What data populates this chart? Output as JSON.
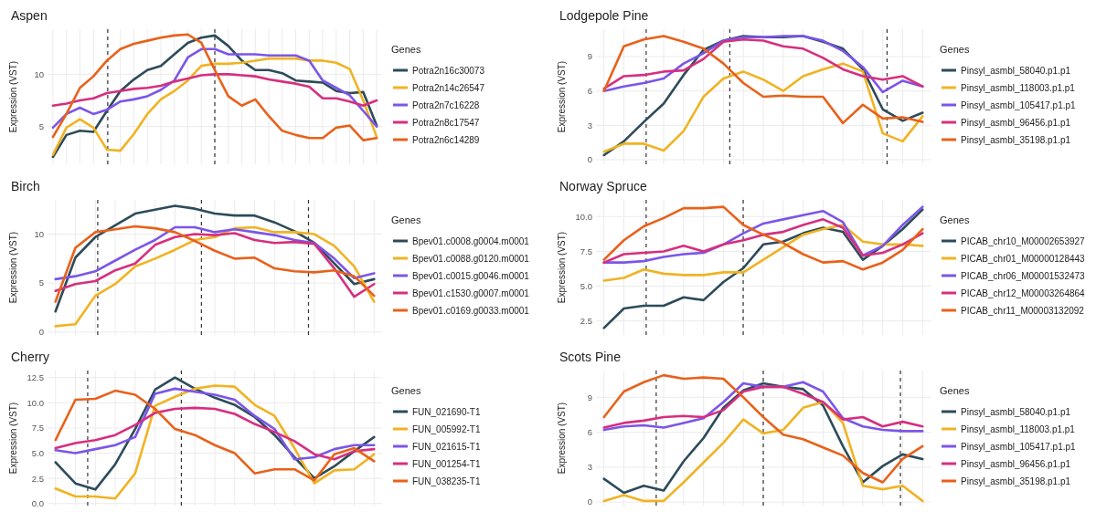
{
  "chart_data": [
    {
      "type": "line",
      "title": "Aspen",
      "ylabel": "Expression (VST)",
      "legend_title": "Genes",
      "legend": "right",
      "grid": true,
      "tick_labels": "y",
      "categories": [
        null,
        null,
        null,
        null,
        null,
        null,
        null,
        null,
        null,
        null,
        null,
        null,
        null,
        null,
        null,
        null,
        null,
        null,
        null,
        null,
        null,
        null,
        null,
        null,
        null
      ],
      "ylim": [
        1.4,
        14.3
      ],
      "yticks": [
        5,
        10
      ],
      "series": [
        {
          "name": "Potra2n16c30073",
          "color": "#2d4b5a",
          "values": [
            2.1,
            4.2,
            4.6,
            4.5,
            6.5,
            8.4,
            9.5,
            10.4,
            10.8,
            11.9,
            13.0,
            13.5,
            13.7,
            12.7,
            11.3,
            10.4,
            10.4,
            10.1,
            9.4,
            9.3,
            9.2,
            8.4,
            8.2,
            8.3,
            5.1
          ]
        },
        {
          "name": "Potra2n14c26547",
          "color": "#f0b323",
          "values": [
            2.3,
            4.9,
            5.7,
            4.9,
            2.8,
            2.7,
            4.3,
            6.2,
            7.6,
            8.4,
            9.4,
            10.8,
            11.0,
            11.0,
            11.1,
            11.3,
            11.5,
            11.5,
            11.5,
            11.3,
            11.3,
            11.1,
            10.5,
            7.5,
            4.0
          ]
        },
        {
          "name": "Potra2n7c16228",
          "color": "#7b56e8",
          "values": [
            4.9,
            6.2,
            6.8,
            6.2,
            6.6,
            7.4,
            7.6,
            7.9,
            8.5,
            9.4,
            11.6,
            12.4,
            12.4,
            11.9,
            11.9,
            11.9,
            11.8,
            11.8,
            11.8,
            11.3,
            9.4,
            8.7,
            8.0,
            6.5,
            5.0
          ]
        },
        {
          "name": "Potra2n8c17547",
          "color": "#d62f7f",
          "values": [
            7.0,
            7.2,
            7.5,
            7.7,
            8.2,
            8.4,
            8.6,
            8.7,
            8.9,
            9.3,
            9.6,
            9.9,
            10.0,
            10.0,
            9.9,
            9.8,
            9.5,
            9.3,
            9.1,
            8.8,
            7.7,
            7.7,
            7.4,
            7.0,
            7.5
          ]
        },
        {
          "name": "Potra2n6c14289",
          "color": "#e8611a",
          "values": [
            4.0,
            6.2,
            8.7,
            9.8,
            11.3,
            12.4,
            12.9,
            13.2,
            13.5,
            13.7,
            13.8,
            13.0,
            10.4,
            7.9,
            7.0,
            7.6,
            6.0,
            4.6,
            4.2,
            3.9,
            3.9,
            4.9,
            5.1,
            3.7,
            3.9
          ]
        }
      ]
    },
    {
      "type": "line",
      "title": "Lodgepole Pine",
      "ylabel": "Expression (VST)",
      "legend_title": "Genes",
      "legend": "right",
      "grid": true,
      "tick_labels": "y",
      "categories": [
        null,
        null,
        null,
        null,
        null,
        null,
        null,
        null,
        null,
        null,
        null,
        null,
        null,
        null,
        null,
        null,
        null
      ],
      "ylim": [
        -0.4,
        11.4
      ],
      "yticks": [
        0,
        3,
        6,
        9
      ],
      "series": [
        {
          "name": "Pinsyl_asmbl_58040.p1.p1",
          "color": "#2d4b5a",
          "values": [
            0.4,
            1.6,
            3.3,
            4.9,
            7.4,
            9.6,
            10.4,
            10.8,
            10.7,
            10.7,
            10.8,
            10.3,
            9.7,
            7.9,
            4.4,
            3.4,
            4.1
          ]
        },
        {
          "name": "Pinsyl_asmbl_118003.p1.p1",
          "color": "#f0b323",
          "values": [
            0.7,
            1.4,
            1.4,
            0.8,
            2.5,
            5.5,
            7.1,
            7.7,
            7.0,
            6.0,
            7.3,
            7.9,
            8.4,
            7.7,
            2.3,
            1.6,
            3.8
          ]
        },
        {
          "name": "Pinsyl_asmbl_105417.p1.p1",
          "color": "#7b56e8",
          "values": [
            6.0,
            6.4,
            6.7,
            7.1,
            8.4,
            9.3,
            10.4,
            10.7,
            10.7,
            10.8,
            10.8,
            10.4,
            9.5,
            8.1,
            5.9,
            6.9,
            6.4
          ]
        },
        {
          "name": "Pinsyl_asmbl_96456.p1.p1",
          "color": "#d62f7f",
          "values": [
            6.2,
            7.3,
            7.4,
            7.7,
            7.8,
            8.8,
            10.3,
            10.5,
            10.4,
            9.9,
            9.7,
            8.9,
            7.9,
            7.3,
            7.0,
            7.3,
            6.4
          ]
        },
        {
          "name": "Pinsyl_asmbl_35198.p1.p1",
          "color": "#e8611a",
          "values": [
            6.0,
            9.9,
            10.5,
            10.8,
            10.3,
            9.7,
            8.4,
            6.7,
            5.5,
            5.6,
            5.5,
            5.5,
            3.2,
            4.8,
            3.6,
            3.7,
            3.3
          ]
        }
      ]
    },
    {
      "type": "line",
      "title": "Birch",
      "ylabel": "Expression (VST)",
      "legend_title": "Genes",
      "legend": "right",
      "grid": true,
      "tick_labels": "y",
      "categories": [
        null,
        null,
        null,
        null,
        null,
        null,
        null,
        null,
        null,
        null,
        null,
        null,
        null,
        null,
        null,
        null,
        null
      ],
      "ylim": [
        -0.3,
        13.5
      ],
      "yticks": [
        0,
        5,
        10
      ],
      "series": [
        {
          "name": "Bpev01.c0008.g0004.m0001",
          "color": "#2d4b5a",
          "values": [
            2.1,
            7.6,
            9.7,
            10.9,
            12.1,
            12.5,
            12.9,
            12.6,
            12.1,
            11.9,
            11.9,
            11.2,
            10.3,
            9.1,
            7.0,
            4.9,
            5.4
          ]
        },
        {
          "name": "Bpev01.c0088.g0120.m0001",
          "color": "#f0b323",
          "values": [
            0.6,
            0.8,
            3.7,
            4.9,
            6.7,
            7.5,
            8.4,
            9.4,
            9.7,
            10.6,
            10.7,
            10.2,
            10.2,
            10.0,
            8.8,
            6.7,
            3.1
          ]
        },
        {
          "name": "Bpev01.c0015.g0046.m0001",
          "color": "#7b56e8",
          "values": [
            5.4,
            5.7,
            6.2,
            7.3,
            8.4,
            9.4,
            10.7,
            10.7,
            10.2,
            10.5,
            10.2,
            9.9,
            9.4,
            9.1,
            7.5,
            5.5,
            6.0
          ]
        },
        {
          "name": "Bpev01.c1530.g0007.m0001",
          "color": "#d62f7f",
          "values": [
            4.2,
            4.9,
            5.2,
            6.3,
            7.0,
            8.9,
            9.7,
            10.0,
            9.9,
            10.1,
            9.4,
            9.1,
            9.2,
            9.0,
            6.5,
            3.6,
            4.9
          ]
        },
        {
          "name": "Bpev01.c0169.g0033.m0001",
          "color": "#e8611a",
          "values": [
            3.1,
            8.6,
            10.2,
            10.5,
            10.8,
            10.6,
            10.2,
            9.3,
            8.3,
            7.5,
            7.6,
            6.5,
            6.2,
            6.1,
            6.3,
            5.7,
            3.7
          ]
        }
      ]
    },
    {
      "type": "line",
      "title": "Norway Spruce",
      "ylabel": "Expression (VST)",
      "legend_title": "Genes",
      "legend": "right",
      "grid": true,
      "tick_labels": "y",
      "categories": [
        null,
        null,
        null,
        null,
        null,
        null,
        null,
        null,
        null,
        null,
        null,
        null,
        null,
        null,
        null,
        null,
        null
      ],
      "ylim": [
        1.5,
        11.2
      ],
      "yticks": [
        {
          "value": 2.5,
          "label": "2.5"
        },
        {
          "value": 5,
          "label": "5.0"
        },
        {
          "value": 7.5,
          "label": "7.5"
        },
        {
          "value": 10,
          "label": "10.0"
        }
      ],
      "series": [
        {
          "name": "PICAB_chr10_M00002653927",
          "color": "#2d4b5a",
          "values": [
            2.0,
            3.4,
            3.6,
            3.6,
            4.2,
            4.0,
            5.3,
            6.3,
            8.0,
            8.2,
            8.8,
            9.2,
            8.9,
            6.9,
            7.9,
            9.1,
            10.5
          ]
        },
        {
          "name": "PICAB_chr01_M00000128443",
          "color": "#f0b323",
          "values": [
            5.4,
            5.6,
            6.2,
            5.9,
            5.8,
            5.8,
            6.0,
            6.0,
            6.9,
            7.8,
            8.7,
            9.1,
            9.4,
            8.2,
            8.0,
            8.0,
            7.9
          ]
        },
        {
          "name": "PICAB_chr06_M00001532473",
          "color": "#7b56e8",
          "values": [
            6.7,
            6.7,
            6.8,
            7.1,
            7.3,
            7.4,
            8.0,
            8.8,
            9.5,
            9.8,
            10.1,
            10.4,
            9.6,
            7.2,
            7.9,
            9.4,
            10.7
          ]
        },
        {
          "name": "PICAB_chr12_M00003264864",
          "color": "#d62f7f",
          "values": [
            6.7,
            7.3,
            7.4,
            7.5,
            7.9,
            7.5,
            8.0,
            8.3,
            8.7,
            8.9,
            9.4,
            9.8,
            9.2,
            7.2,
            7.4,
            8.0,
            8.8
          ]
        },
        {
          "name": "PICAB_chr11_M00003132092",
          "color": "#e8611a",
          "values": [
            6.9,
            8.3,
            9.3,
            9.9,
            10.6,
            10.6,
            10.7,
            9.4,
            8.7,
            8.1,
            7.3,
            6.7,
            6.8,
            6.2,
            6.7,
            7.6,
            9.1
          ]
        }
      ]
    },
    {
      "type": "line",
      "title": "Cherry",
      "ylabel": "Expression (VST)",
      "legend_title": "Genes",
      "legend": "right",
      "grid": true,
      "tick_labels": "y",
      "categories": [
        null,
        null,
        null,
        null,
        null,
        null,
        null,
        null,
        null,
        null,
        null,
        null,
        null,
        null,
        null,
        null,
        null
      ],
      "ylim": [
        -0.2,
        13.2
      ],
      "yticks": [
        {
          "value": 0,
          "label": "0.0"
        },
        {
          "value": 2.5,
          "label": "2.5"
        },
        {
          "value": 5,
          "label": "5.0"
        },
        {
          "value": 7.5,
          "label": "7.5"
        },
        {
          "value": 10,
          "label": "10.0"
        },
        {
          "value": 12.5,
          "label": "12.5"
        }
      ],
      "series": [
        {
          "name": "FUN_021690-T1",
          "color": "#2d4b5a",
          "values": [
            4.1,
            2.0,
            1.4,
            3.9,
            7.4,
            11.3,
            12.5,
            11.4,
            10.5,
            9.8,
            8.6,
            6.8,
            4.6,
            2.5,
            3.7,
            5.2,
            6.6
          ]
        },
        {
          "name": "FUN_005992-T1",
          "color": "#f0b323",
          "values": [
            1.5,
            0.7,
            0.7,
            0.5,
            3.0,
            9.7,
            10.6,
            11.4,
            11.7,
            11.6,
            9.8,
            8.7,
            5.5,
            2.0,
            3.3,
            3.4,
            4.9
          ]
        },
        {
          "name": "FUN_021615-T1",
          "color": "#7b56e8",
          "values": [
            5.3,
            5.0,
            5.4,
            5.8,
            6.6,
            10.9,
            11.4,
            11.1,
            10.8,
            10.3,
            8.7,
            7.4,
            4.4,
            4.6,
            5.4,
            5.8,
            5.8
          ]
        },
        {
          "name": "FUN_001254-T1",
          "color": "#d62f7f",
          "values": [
            5.5,
            6.0,
            6.3,
            6.8,
            7.8,
            9.0,
            9.4,
            9.5,
            9.4,
            8.9,
            7.9,
            7.1,
            6.2,
            4.9,
            4.4,
            5.2,
            5.4
          ]
        },
        {
          "name": "FUN_038235-T1",
          "color": "#e8611a",
          "values": [
            6.3,
            10.3,
            10.4,
            11.2,
            10.8,
            9.4,
            7.4,
            6.8,
            5.8,
            5.0,
            3.0,
            3.4,
            3.4,
            2.3,
            4.9,
            5.5,
            4.2
          ]
        }
      ]
    },
    {
      "type": "line",
      "title": "Scots Pine",
      "ylabel": "Expression (VST)",
      "legend_title": "Genes",
      "legend": "right",
      "grid": true,
      "tick_labels": "y",
      "categories": [
        null,
        null,
        null,
        null,
        null,
        null,
        null,
        null,
        null,
        null,
        null,
        null,
        null,
        null,
        null,
        null,
        null
      ],
      "ylim": [
        -0.3,
        11.3
      ],
      "yticks": [
        0,
        3,
        6,
        9
      ],
      "series": [
        {
          "name": "Pinsyl_asmbl_58040.p1.p1",
          "color": "#2d4b5a",
          "values": [
            2.0,
            0.8,
            1.4,
            1.0,
            3.5,
            5.5,
            8.1,
            9.6,
            10.2,
            9.9,
            9.7,
            8.3,
            4.8,
            1.7,
            3.1,
            4.1,
            3.7
          ]
        },
        {
          "name": "Pinsyl_asmbl_118003.p1.p1",
          "color": "#f0b323",
          "values": [
            0.1,
            0.6,
            0.1,
            0.1,
            1.7,
            3.4,
            5.1,
            7.1,
            5.9,
            6.2,
            8.1,
            8.6,
            6.8,
            1.4,
            1.1,
            1.4,
            0.1
          ]
        },
        {
          "name": "Pinsyl_asmbl_105417.p1.p1",
          "color": "#7b56e8",
          "values": [
            6.2,
            6.5,
            6.6,
            6.4,
            6.8,
            7.2,
            8.6,
            10.2,
            9.9,
            9.9,
            10.3,
            9.5,
            7.2,
            6.5,
            6.2,
            6.1,
            6.1
          ]
        },
        {
          "name": "Pinsyl_asmbl_96456.p1.p1",
          "color": "#d62f7f",
          "values": [
            6.4,
            6.8,
            7.0,
            7.3,
            7.4,
            7.3,
            7.9,
            9.5,
            9.9,
            9.9,
            9.3,
            8.6,
            7.1,
            7.3,
            6.5,
            6.9,
            6.5
          ]
        },
        {
          "name": "Pinsyl_asmbl_35198.p1.p1",
          "color": "#e8611a",
          "values": [
            7.3,
            9.5,
            10.3,
            10.9,
            10.6,
            10.7,
            10.6,
            9.0,
            7.3,
            5.8,
            5.4,
            4.7,
            4.0,
            2.5,
            1.7,
            3.7,
            4.8
          ]
        }
      ]
    }
  ]
}
